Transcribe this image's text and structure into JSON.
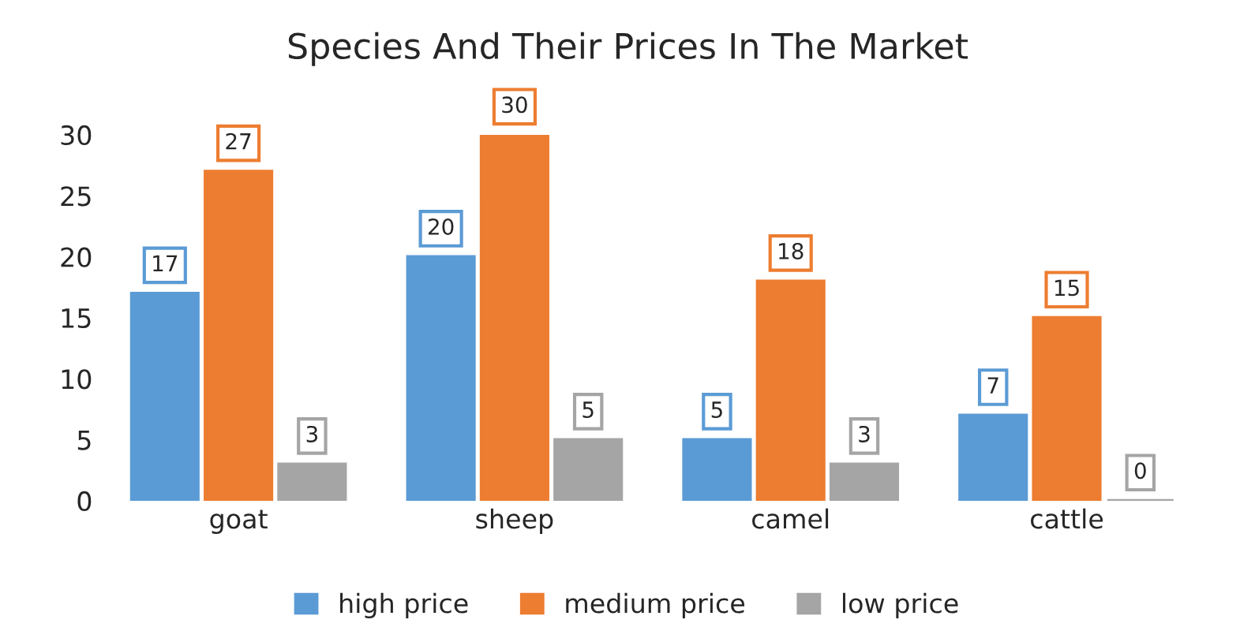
{
  "chart_data": {
    "type": "bar",
    "title": "Species And Their Prices In The Market",
    "categories": [
      "goat",
      "sheep",
      "camel",
      "cattle"
    ],
    "series": [
      {
        "name": "high price",
        "color": "#5b9bd5",
        "values": [
          17,
          20,
          5,
          7
        ]
      },
      {
        "name": "medium price",
        "color": "#ed7d31",
        "values": [
          27,
          30,
          18,
          15
        ]
      },
      {
        "name": "low price",
        "color": "#a5a5a5",
        "values": [
          3,
          5,
          3,
          0
        ]
      }
    ],
    "ylim": [
      0,
      30
    ],
    "yticks": [
      0,
      5,
      10,
      15,
      20,
      25,
      30
    ],
    "grid": false,
    "legend": "bottom",
    "data_labels": true
  }
}
